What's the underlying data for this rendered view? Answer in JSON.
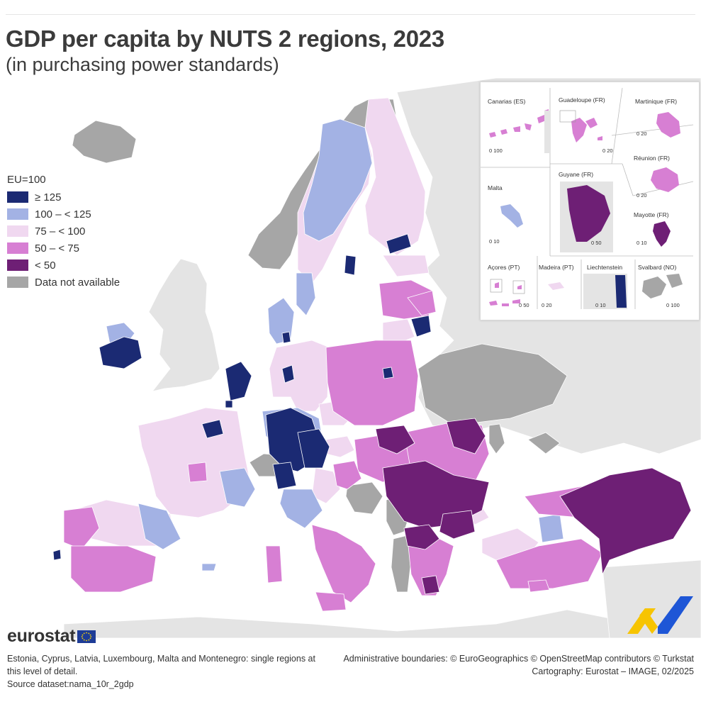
{
  "title": "GDP per capita by NUTS 2 regions, 2023",
  "subtitle": "(in purchasing power standards)",
  "legend": {
    "title": "EU=100",
    "items": [
      {
        "label": "≥ 125",
        "color": "#1b2a73"
      },
      {
        "label": "100 – < 125",
        "color": "#a3b2e4"
      },
      {
        "label": "75 – < 100",
        "color": "#f0d8f0"
      },
      {
        "label": "50 – < 75",
        "color": "#d77fd3"
      },
      {
        "label": "< 50",
        "color": "#6e1f75"
      },
      {
        "label": "Data not available",
        "color": "#a6a6a6"
      }
    ]
  },
  "insets": [
    {
      "label": "Canarias (ES)",
      "scale": "0   100"
    },
    {
      "label": "Guadeloupe (FR)",
      "scale": "0   20"
    },
    {
      "label": "Martinique (FR)",
      "scale": "0   20"
    },
    {
      "label": "Réunion (FR)",
      "scale": "0   20"
    },
    {
      "label": "Malta",
      "scale": "0   10"
    },
    {
      "label": "Guyane (FR)",
      "scale": "0   50"
    },
    {
      "label": "Mayotte (FR)",
      "scale": "0   10"
    },
    {
      "label": "Açores (PT)",
      "scale": "0   50"
    },
    {
      "label": "Madeira (PT)",
      "scale": "0   20"
    },
    {
      "label": "Liechtenstein",
      "scale": "0   10"
    },
    {
      "label": "Svalbard (NO)",
      "scale": "0 100"
    }
  ],
  "logo": {
    "text": "eurostat"
  },
  "footer": {
    "note_line1": "Estonia, Cyprus, Latvia, Luxembourg, Malta and Montenegro: single regions at",
    "note_line2": "this level of detail.",
    "source": "Source dataset:nama_10r_2gdp",
    "admin": "Administrative boundaries: © EuroGeographics © OpenStreetMap contributors © Turkstat",
    "cartography": "Cartography: Eurostat – IMAGE, 02/2025"
  },
  "colors": {
    "sea": "#ffffff",
    "non_eu_land": "#e4e4e4",
    "border": "#ffffff"
  }
}
